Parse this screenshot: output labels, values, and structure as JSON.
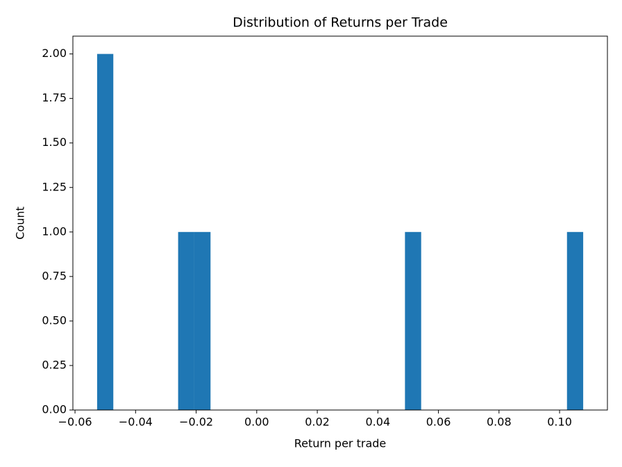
{
  "chart_data": {
    "type": "histogram",
    "title": "Distribution of Returns per Trade",
    "x_label": "Return per trade",
    "y_label": "Count",
    "color": "#1f77b4",
    "bins": [
      -0.0527,
      -0.04735,
      -0.042,
      -0.03665,
      -0.0313,
      -0.02595,
      -0.0206,
      -0.01525,
      -0.0099,
      -0.00455,
      0.0008,
      0.00615,
      0.0115,
      0.01685,
      0.0222,
      0.02755,
      0.0329,
      0.03825,
      0.0436,
      0.04895,
      0.0543,
      0.05965,
      0.065,
      0.07035,
      0.0757,
      0.08105,
      0.0864,
      0.09175,
      0.0971,
      0.10245,
      0.1078
    ],
    "counts": [
      2,
      0,
      0,
      0,
      0,
      1,
      1,
      0,
      0,
      0,
      0,
      0,
      0,
      0,
      0,
      0,
      0,
      0,
      0,
      1,
      0,
      0,
      0,
      0,
      0,
      0,
      0,
      0,
      0,
      1
    ],
    "xlim": [
      -0.0607,
      0.1158
    ],
    "ylim": [
      0,
      2.1
    ],
    "xticks": [
      {
        "value": -0.06,
        "label": "−0.06"
      },
      {
        "value": -0.04,
        "label": "−0.04"
      },
      {
        "value": -0.02,
        "label": "−0.02"
      },
      {
        "value": 0,
        "label": "0.00"
      },
      {
        "value": 0.02,
        "label": "0.02"
      },
      {
        "value": 0.04,
        "label": "0.04"
      },
      {
        "value": 0.06,
        "label": "0.06"
      },
      {
        "value": 0.08,
        "label": "0.08"
      },
      {
        "value": 0.1,
        "label": "0.10"
      }
    ],
    "yticks": [
      {
        "value": 0,
        "label": "0.00"
      },
      {
        "value": 0.25,
        "label": "0.25"
      },
      {
        "value": 0.5,
        "label": "0.50"
      },
      {
        "value": 0.75,
        "label": "0.75"
      },
      {
        "value": 1,
        "label": "1.00"
      },
      {
        "value": 1.25,
        "label": "1.25"
      },
      {
        "value": 1.5,
        "label": "1.50"
      },
      {
        "value": 1.75,
        "label": "1.75"
      },
      {
        "value": 2,
        "label": "2.00"
      }
    ]
  }
}
